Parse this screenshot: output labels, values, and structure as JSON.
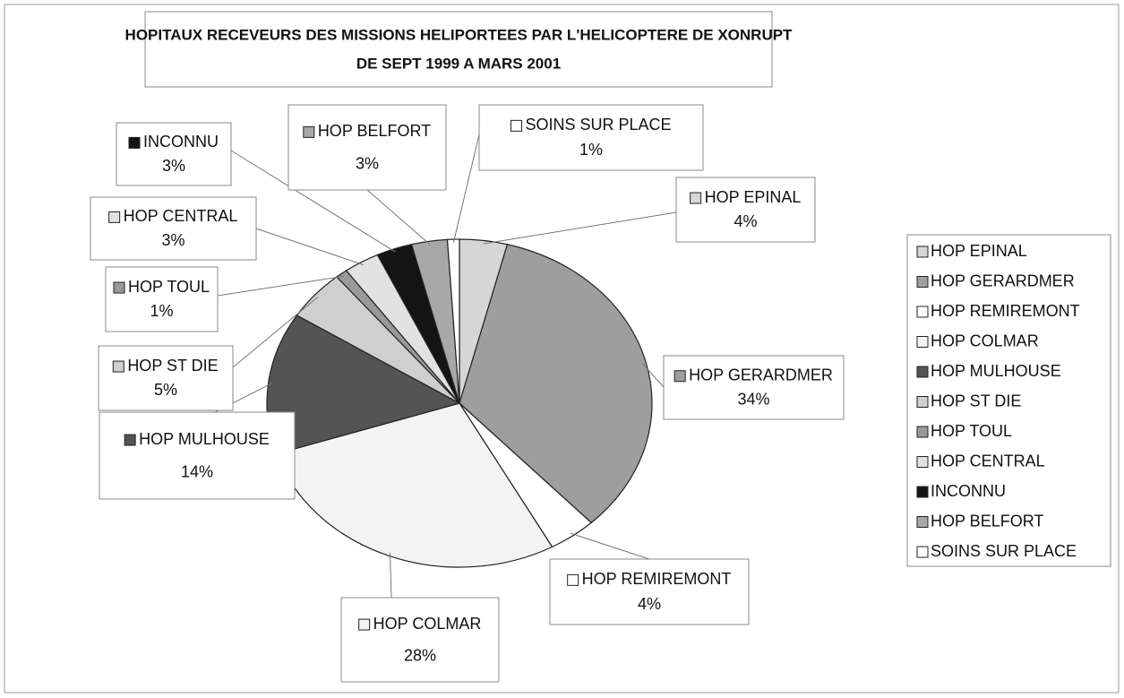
{
  "chart_data": {
    "type": "pie",
    "title": "HOPITAUX RECEVEURS DES MISSIONS HELIPORTEES PAR L'HELICOPTERE DE XONRUPT",
    "subtitle": "DE SEPT 1999 A MARS 2001",
    "categories": [
      "HOP EPINAL",
      "HOP GERARDMER",
      "HOP REMIREMONT",
      "HOP COLMAR",
      "HOP MULHOUSE",
      "HOP ST DIE",
      "HOP TOUL",
      "HOP CENTRAL",
      "INCONNU",
      "HOP BELFORT",
      "SOINS SUR PLACE"
    ],
    "values": [
      4,
      34,
      4,
      28,
      14,
      5,
      1,
      3,
      3,
      3,
      1
    ],
    "value_labels": [
      "4%",
      "34%",
      "4%",
      "28%",
      "14%",
      "5%",
      "1%",
      "3%",
      "3%",
      "3%",
      "1%"
    ],
    "colors": [
      "#d6d6d6",
      "#9e9e9e",
      "#ffffff",
      "#f3f3f3",
      "#545454",
      "#cfcfcf",
      "#999999",
      "#e2e2e2",
      "#141414",
      "#a8a8a8",
      "#ffffff"
    ],
    "legend": "right"
  }
}
